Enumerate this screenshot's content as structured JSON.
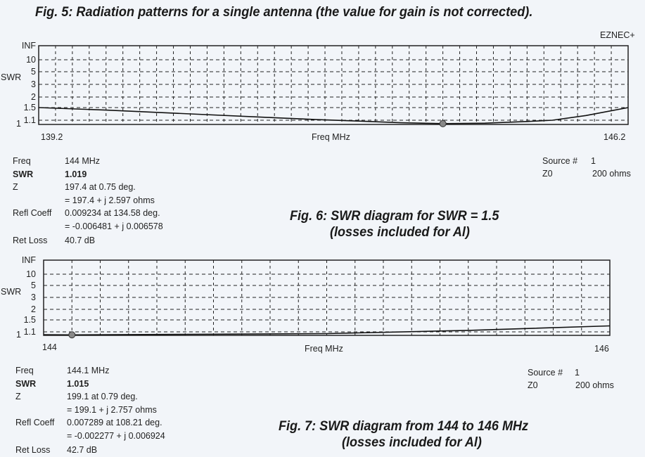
{
  "captions": {
    "fig5": "Fig. 5: Radiation patterns for a single antenna (the value for gain is not corrected).",
    "fig6_line1": "Fig. 6: SWR diagram for SWR = 1.5",
    "fig6_line2": "(losses included for Al)",
    "fig7_line1": "Fig. 7: SWR diagram from 144 to 146 MHz",
    "fig7_line2": "(losses included for Al)"
  },
  "watermark": "EZNEC+",
  "chart_data": [
    {
      "type": "line",
      "title": "",
      "xlabel": "Freq MHz",
      "ylabel": "SWR",
      "xlim": [
        139.2,
        146.2
      ],
      "x_tick_labels": [
        "139.2",
        "146.2"
      ],
      "y_tick_labels": [
        "INF",
        "10",
        "5",
        "3",
        "2",
        "1.5",
        "1.1",
        "1"
      ],
      "y_scale": "SWR (nonlinear)",
      "grid": true,
      "marker": {
        "x": 144,
        "y": 1.019
      },
      "x": [
        139.2,
        140,
        141,
        142,
        142.5,
        143,
        143.5,
        144,
        144.5,
        145,
        145.3,
        145.7,
        146.2
      ],
      "y": [
        1.5,
        1.42,
        1.3,
        1.18,
        1.12,
        1.08,
        1.04,
        1.02,
        1.03,
        1.07,
        1.1,
        1.25,
        1.5
      ]
    },
    {
      "type": "line",
      "title": "",
      "xlabel": "Freq MHz",
      "ylabel": "SWR",
      "xlim": [
        144,
        146
      ],
      "x_tick_labels": [
        "144",
        "146"
      ],
      "y_tick_labels": [
        "INF",
        "10",
        "5",
        "3",
        "2",
        "1.5",
        "1.1",
        "1"
      ],
      "y_scale": "SWR (nonlinear)",
      "grid": true,
      "marker": {
        "x": 144.1,
        "y": 1.015
      },
      "x": [
        144,
        144.1,
        144.5,
        145,
        145.5,
        146
      ],
      "y": [
        1.02,
        1.015,
        1.03,
        1.05,
        1.15,
        1.3
      ]
    }
  ],
  "readout1": {
    "rows": [
      {
        "label": "Freq",
        "value": "144 MHz"
      },
      {
        "label": "SWR",
        "value": "1.019"
      },
      {
        "label": "Z",
        "value": "197.4 at 0.75 deg."
      },
      {
        "label": "",
        "value": "= 197.4 + j 2.597 ohms"
      },
      {
        "label": "Refl Coeff",
        "value": "0.009234 at 134.58 deg."
      },
      {
        "label": "",
        "value": "= -0.006481 + j 0.006578"
      },
      {
        "label": "Ret Loss",
        "value": "40.7 dB"
      }
    ],
    "source_label": "Source #",
    "source_value": "1",
    "z0_label": "Z0",
    "z0_value": "200 ohms"
  },
  "readout2": {
    "rows": [
      {
        "label": "Freq",
        "value": "144.1 MHz"
      },
      {
        "label": "SWR",
        "value": "1.015"
      },
      {
        "label": "Z",
        "value": "199.1 at 0.79 deg."
      },
      {
        "label": "",
        "value": "= 199.1 + j 2.757 ohms"
      },
      {
        "label": "Refl Coeff",
        "value": "0.007289 at 108.21 deg."
      },
      {
        "label": "",
        "value": "= -0.002277 + j 0.006924"
      },
      {
        "label": "Ret Loss",
        "value": "42.7 dB"
      }
    ],
    "source_label": "Source #",
    "source_value": "1",
    "z0_label": "Z0",
    "z0_value": "200 ohms"
  }
}
